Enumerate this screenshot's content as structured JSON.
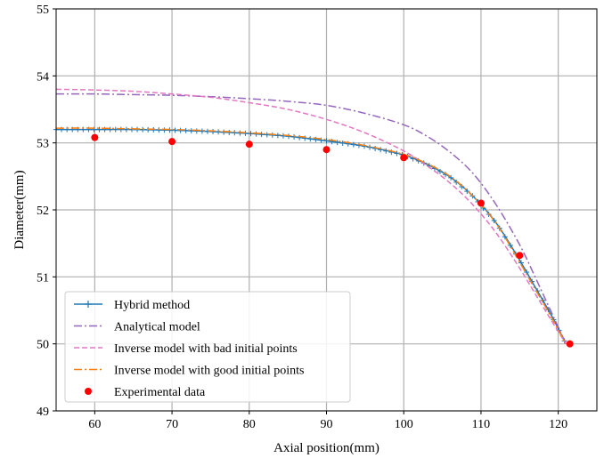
{
  "chart_data": {
    "type": "line",
    "title": "",
    "xlabel": "Axial position(mm)",
    "ylabel": "Diameter(mm)",
    "xlim": [
      55,
      125
    ],
    "ylim": [
      49,
      55
    ],
    "xticks": [
      60,
      70,
      80,
      90,
      100,
      110,
      120
    ],
    "yticks": [
      49,
      50,
      51,
      52,
      53,
      54,
      55
    ],
    "grid": true,
    "legend_position": "lower-left",
    "series": [
      {
        "name": "Hybrid method",
        "color": "#1f77b4",
        "style": "solid-with-plus-markers",
        "x": [
          55,
          60,
          65,
          70,
          75,
          80,
          85,
          90,
          95,
          100,
          103,
          106,
          109,
          112,
          115,
          117,
          119,
          121
        ],
        "y": [
          53.2,
          53.2,
          53.2,
          53.19,
          53.17,
          53.14,
          53.1,
          53.03,
          52.95,
          52.82,
          52.68,
          52.49,
          52.2,
          51.8,
          51.25,
          50.85,
          50.45,
          50.0
        ]
      },
      {
        "name": "Analytical model",
        "color": "#9467bd",
        "style": "dash-dot",
        "x": [
          55,
          60,
          65,
          70,
          75,
          80,
          85,
          90,
          95,
          100,
          103,
          106,
          109,
          112,
          115,
          117,
          119,
          121
        ],
        "y": [
          53.73,
          53.73,
          53.72,
          53.71,
          53.69,
          53.66,
          53.62,
          53.56,
          53.44,
          53.27,
          53.1,
          52.86,
          52.54,
          52.07,
          51.48,
          51.0,
          50.5,
          50.0
        ]
      },
      {
        "name": "Inverse model with bad initial points",
        "color": "#e377c2",
        "style": "dashed",
        "x": [
          55,
          60,
          65,
          70,
          75,
          80,
          85,
          90,
          95,
          100,
          103,
          106,
          109,
          112,
          115,
          117,
          119,
          121
        ],
        "y": [
          53.8,
          53.79,
          53.77,
          53.73,
          53.68,
          53.6,
          53.5,
          53.35,
          53.15,
          52.88,
          52.66,
          52.4,
          52.07,
          51.65,
          51.13,
          50.75,
          50.37,
          50.0
        ]
      },
      {
        "name": "Inverse model with good initial points",
        "color": "#ff7f0e",
        "style": "dash-dot",
        "x": [
          55,
          60,
          65,
          70,
          75,
          80,
          85,
          90,
          95,
          100,
          103,
          106,
          109,
          112,
          115,
          117,
          119,
          121
        ],
        "y": [
          53.22,
          53.22,
          53.21,
          53.2,
          53.18,
          53.15,
          53.11,
          53.05,
          52.96,
          52.83,
          52.69,
          52.5,
          52.2,
          51.79,
          51.22,
          50.82,
          50.42,
          50.0
        ]
      },
      {
        "name": "Experimental data",
        "color": "#ff0000",
        "style": "points",
        "x": [
          60,
          70,
          80,
          90,
          100,
          110,
          115,
          121.5
        ],
        "y": [
          53.08,
          53.02,
          52.98,
          52.9,
          52.78,
          52.1,
          51.32,
          50.0
        ]
      }
    ]
  }
}
